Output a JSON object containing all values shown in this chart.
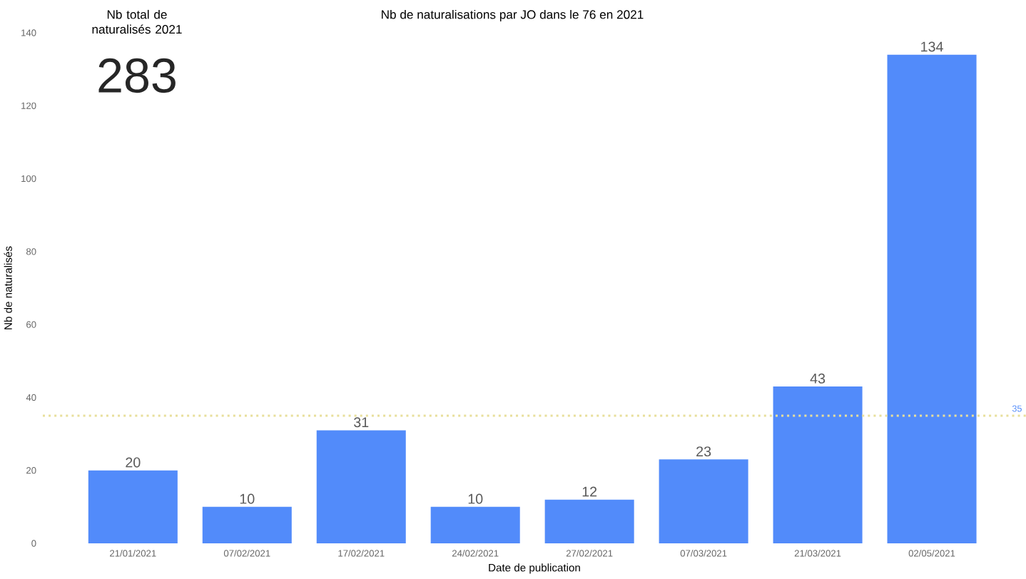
{
  "chart_data": {
    "type": "bar",
    "title": "Nb de naturalisations par JO dans le 76 en 2021",
    "xlabel": "Date de publication",
    "ylabel": "Nb de naturalisés",
    "categories": [
      "21/01/2021",
      "07/02/2021",
      "17/02/2021",
      "24/02/2021",
      "27/02/2021",
      "07/03/2021",
      "21/03/2021",
      "02/05/2021"
    ],
    "values": [
      20,
      10,
      31,
      10,
      12,
      23,
      43,
      134
    ],
    "color": "#528bfa",
    "ylim": [
      0,
      140
    ],
    "yticks": [
      0,
      20,
      40,
      60,
      80,
      100,
      120,
      140
    ],
    "data_labels": true,
    "ref_lines": [
      {
        "axis": "y",
        "value": 35,
        "label": "35",
        "color": "#e8df9b",
        "line_style": "dotted"
      }
    ],
    "annotations": [
      "Nb total de naturalisés 2021",
      "283"
    ]
  }
}
